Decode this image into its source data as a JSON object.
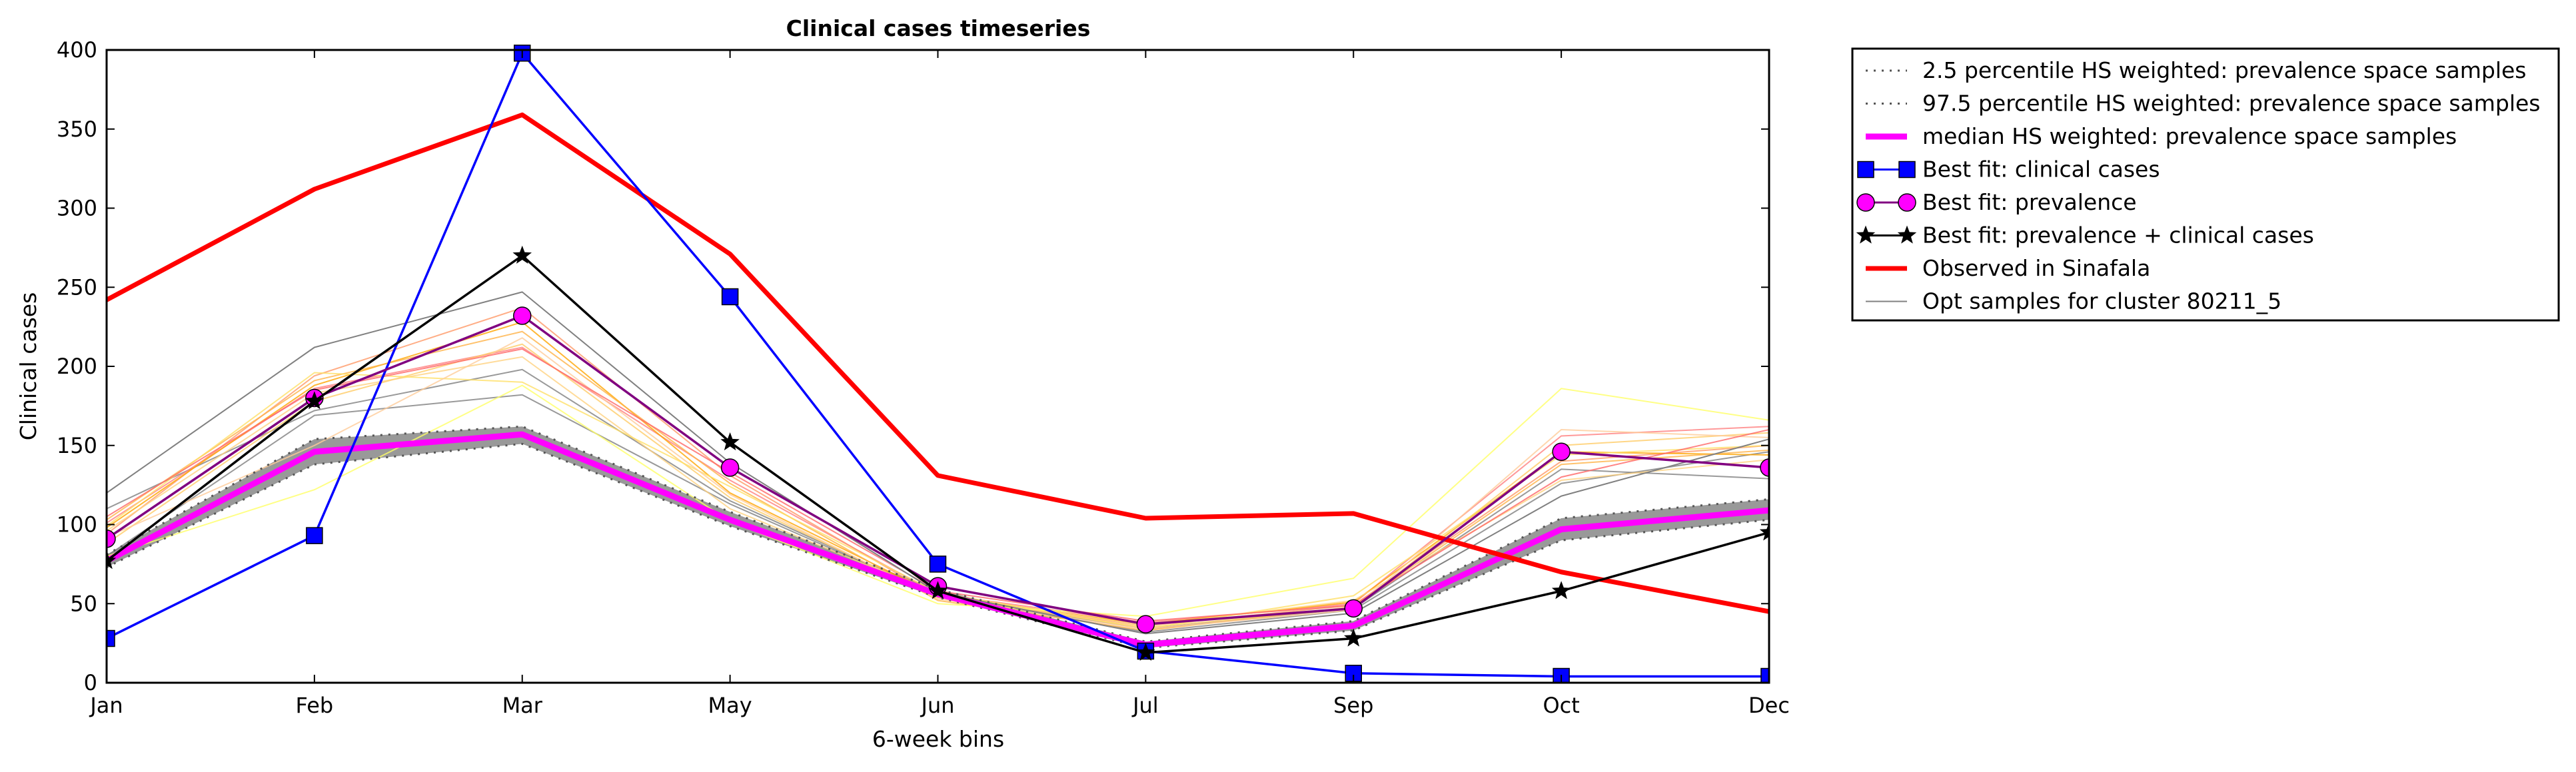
{
  "chart_data": {
    "type": "line",
    "title": "Clinical cases timeseries",
    "xlabel": "6-week bins",
    "ylabel": "Clinical cases",
    "categories": [
      "Jan",
      "Feb",
      "Mar",
      "May",
      "Jun",
      "Jul",
      "Sep",
      "Oct",
      "Dec"
    ],
    "ylim": [
      0,
      400
    ],
    "yticks": [
      0,
      50,
      100,
      150,
      200,
      250,
      300,
      350,
      400
    ],
    "grid": false,
    "legend_position": "outside-top-right",
    "band": {
      "color": "#999999",
      "lower": [
        73,
        138,
        151,
        99,
        54,
        22,
        33,
        90,
        103
      ],
      "upper": [
        81,
        154,
        162,
        108,
        59,
        26,
        39,
        104,
        116
      ]
    },
    "series": [
      {
        "name": "2.5 percentile HS weighted: prevalence space samples",
        "style": "percentile",
        "color": "#555555",
        "values": [
          73,
          138,
          151,
          99,
          54,
          22,
          33,
          90,
          103
        ]
      },
      {
        "name": "97.5 percentile HS weighted: prevalence space samples",
        "style": "percentile",
        "color": "#555555",
        "values": [
          81,
          154,
          162,
          108,
          59,
          26,
          39,
          104,
          116
        ]
      },
      {
        "name": "median HS weighted: prevalence space samples",
        "style": "median",
        "color": "#ff00ff",
        "values": [
          77,
          146,
          157,
          103,
          56,
          24,
          36,
          97,
          109
        ]
      },
      {
        "name": "Best fit: clinical cases",
        "style": "square",
        "color": "#0000ff",
        "values": [
          28,
          93,
          398,
          244,
          75,
          20,
          6,
          4,
          4
        ]
      },
      {
        "name": "Best fit: prevalence",
        "style": "circle",
        "color": "#800080",
        "marker_fill": "#ff00ff",
        "values": [
          91,
          180,
          232,
          136,
          61,
          37,
          47,
          146,
          136
        ]
      },
      {
        "name": "Best fit: prevalence + clinical cases",
        "style": "star",
        "color": "#000000",
        "values": [
          77,
          178,
          270,
          152,
          58,
          19,
          28,
          58,
          95
        ]
      },
      {
        "name": "Observed in Sinafala",
        "style": "observed",
        "color": "#ff0000",
        "values": [
          242,
          312,
          359,
          271,
          131,
          104,
          107,
          70,
          45
        ]
      },
      {
        "name": "Opt samples for cluster 80211_5",
        "style": "thin",
        "color": "#808080",
        "values": [
          120,
          212,
          247,
          139,
          57,
          31,
          44,
          118,
          154
        ]
      }
    ],
    "extra_samples": [
      {
        "color": "#808080",
        "values": [
          110,
          172,
          198,
          115,
          55,
          32,
          46,
          126,
          146
        ]
      },
      {
        "color": "#808080",
        "values": [
          80,
          169,
          182,
          113,
          55,
          34,
          47,
          135,
          129
        ]
      },
      {
        "color": "#ff7f7f",
        "values": [
          101,
          186,
          212,
          128,
          56,
          38,
          50,
          156,
          162
        ]
      },
      {
        "color": "#ff9966",
        "values": [
          94,
          194,
          237,
          131,
          54,
          36,
          49,
          140,
          150
        ]
      },
      {
        "color": "#ffa500",
        "values": [
          98,
          188,
          228,
          120,
          55,
          37,
          51,
          146,
          144
        ]
      },
      {
        "color": "#ffb347",
        "values": [
          103,
          191,
          222,
          126,
          52,
          33,
          48,
          138,
          147
        ]
      },
      {
        "color": "#ffcc66",
        "values": [
          88,
          178,
          214,
          117,
          54,
          35,
          47,
          150,
          158
        ]
      },
      {
        "color": "#ffd27f",
        "values": [
          96,
          183,
          206,
          110,
          56,
          36,
          52,
          128,
          141
        ]
      },
      {
        "color": "#ffe066",
        "values": [
          99,
          196,
          190,
          124,
          57,
          34,
          55,
          144,
          150
        ]
      },
      {
        "color": "#ffff66",
        "values": [
          80,
          122,
          188,
          102,
          50,
          42,
          66,
          186,
          166
        ]
      },
      {
        "color": "#ffcc99",
        "values": [
          92,
          150,
          218,
          119,
          53,
          34,
          46,
          160,
          155
        ]
      },
      {
        "color": "#ff6666",
        "values": [
          105,
          185,
          211,
          133,
          58,
          39,
          49,
          130,
          160
        ]
      }
    ]
  }
}
